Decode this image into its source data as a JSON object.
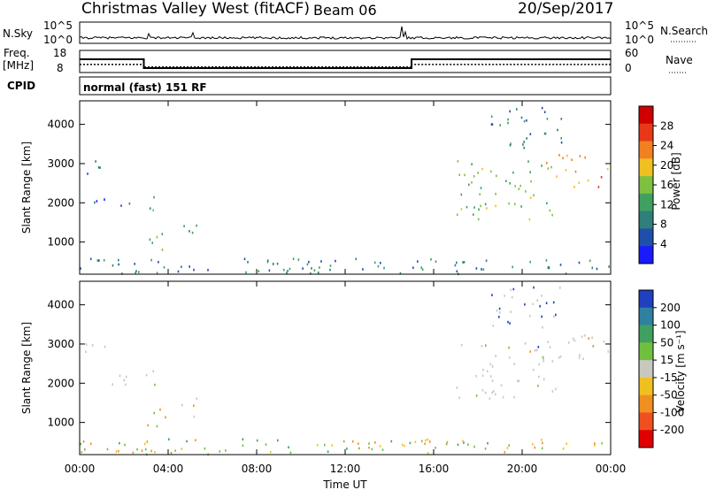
{
  "header": {
    "title": "Christmas Valley West (fitACF)",
    "beam": "Beam 06",
    "date": "20/Sep/2017"
  },
  "strip_labels": {
    "nsky": "N.Sky",
    "nsky_ticks": [
      "10^5",
      "10^0"
    ],
    "nsearch": "N.Search",
    "nsearch_ticks": [
      "10^5",
      "10^0"
    ],
    "freq_l1": "Freq.",
    "freq_l2": "[MHz]",
    "freq_ticks": [
      "18",
      "8"
    ],
    "nave": "Nave",
    "nave_ticks": [
      "60",
      "0"
    ],
    "cpid": "CPID",
    "cpid_text": "normal (fast) 151 RF"
  },
  "chart_data": [
    {
      "type": "heatmap",
      "panel": "power",
      "xlabel": "",
      "ylabel": "Slant Range [km]",
      "x_ticks": [
        "00:00",
        "04:00",
        "08:00",
        "12:00",
        "16:00",
        "20:00",
        "00:00"
      ],
      "y_ticks": [
        1000,
        2000,
        3000,
        4000
      ],
      "xlim": [
        0,
        24
      ],
      "ylim": [
        180,
        4600
      ],
      "colorbar": {
        "label": "Power [dB]",
        "ticks": [
          4,
          8,
          12,
          16,
          20,
          24,
          28
        ],
        "range": [
          0,
          32
        ],
        "colors": [
          "#1a1aff",
          "#1f4faa",
          "#2f7f7a",
          "#3fa060",
          "#7fc040",
          "#f0c020",
          "#f08020",
          "#e83818",
          "#d00000"
        ]
      },
      "scatter_regions": [
        {
          "t": [
            0.0,
            1.2
          ],
          "r": [
            2700,
            3150
          ],
          "level": 8
        },
        {
          "t": [
            0.0,
            2.3
          ],
          "r": [
            1950,
            2250
          ],
          "level": 6
        },
        {
          "t": [
            2.9,
            3.5
          ],
          "r": [
            1750,
            2450
          ],
          "level": 12
        },
        {
          "t": [
            2.9,
            4.0
          ],
          "r": [
            750,
            1450
          ],
          "level": 14
        },
        {
          "t": [
            4.5,
            5.5
          ],
          "r": [
            1100,
            1700
          ],
          "level": 11
        },
        {
          "t": [
            0.0,
            24.0
          ],
          "r": [
            200,
            600
          ],
          "level": 9
        },
        {
          "t": [
            17.0,
            21.5
          ],
          "r": [
            1600,
            3100
          ],
          "level": 16
        },
        {
          "t": [
            20.5,
            21.3
          ],
          "r": [
            2900,
            3200
          ],
          "level": 20
        },
        {
          "t": [
            21.5,
            24.0
          ],
          "r": [
            2400,
            3250
          ],
          "level": 22
        },
        {
          "t": [
            18.5,
            22.0
          ],
          "r": [
            3400,
            4500
          ],
          "level": 10
        }
      ]
    },
    {
      "type": "heatmap",
      "panel": "velocity",
      "xlabel": "Time UT",
      "ylabel": "Slant Range [km]",
      "x_ticks": [
        "00:00",
        "04:00",
        "08:00",
        "12:00",
        "16:00",
        "20:00",
        "00:00"
      ],
      "y_ticks": [
        1000,
        2000,
        3000,
        4000
      ],
      "xlim": [
        0,
        24
      ],
      "ylim": [
        180,
        4600
      ],
      "colorbar": {
        "label": "Velocity [m s⁻¹]",
        "ticks": [
          200,
          100,
          50,
          15,
          -15,
          -50,
          -100,
          -200
        ],
        "colors": [
          "#2040c0",
          "#3080a0",
          "#40a060",
          "#70c040",
          "#c8c8c0",
          "#f0c020",
          "#f09020",
          "#f05020",
          "#e00000"
        ]
      },
      "scatter_regions": [
        {
          "t": [
            0.0,
            1.2
          ],
          "r": [
            2700,
            3150
          ],
          "color_key": "ground"
        },
        {
          "t": [
            0.0,
            2.3
          ],
          "r": [
            1950,
            2250
          ],
          "color_key": "ground"
        },
        {
          "t": [
            2.9,
            3.5
          ],
          "r": [
            1750,
            2450
          ],
          "color_key": "ground"
        },
        {
          "t": [
            2.9,
            4.0
          ],
          "r": [
            750,
            1450
          ],
          "color_key": "mixed_orange"
        },
        {
          "t": [
            4.5,
            5.5
          ],
          "r": [
            1100,
            1700
          ],
          "color_key": "ground"
        },
        {
          "t": [
            0.0,
            24.0
          ],
          "r": [
            200,
            600
          ],
          "color_key": "mixed_low"
        },
        {
          "t": [
            17.0,
            21.5
          ],
          "r": [
            1600,
            3100
          ],
          "color_key": "ground"
        },
        {
          "t": [
            21.5,
            24.0
          ],
          "r": [
            2400,
            3250
          ],
          "color_key": "ground"
        },
        {
          "t": [
            18.5,
            22.0
          ],
          "r": [
            3400,
            4500
          ],
          "color_key": "sparse"
        }
      ]
    }
  ],
  "series_lines": {
    "nsky": "noisy low trace near 10^0 with spikes at ~3h, ~5h, ~14.5h",
    "freq_mhz": [
      {
        "t": [
          0,
          2.9
        ],
        "v": 14
      },
      {
        "t": [
          2.9,
          15
        ],
        "v": 10
      },
      {
        "t": [
          15,
          24
        ],
        "v": 14
      }
    ],
    "nave": [
      {
        "t": [
          0,
          2.9
        ],
        "v": 22
      },
      {
        "t": [
          2.9,
          15
        ],
        "v": 15
      },
      {
        "t": [
          15,
          24
        ],
        "v": 22
      }
    ]
  }
}
